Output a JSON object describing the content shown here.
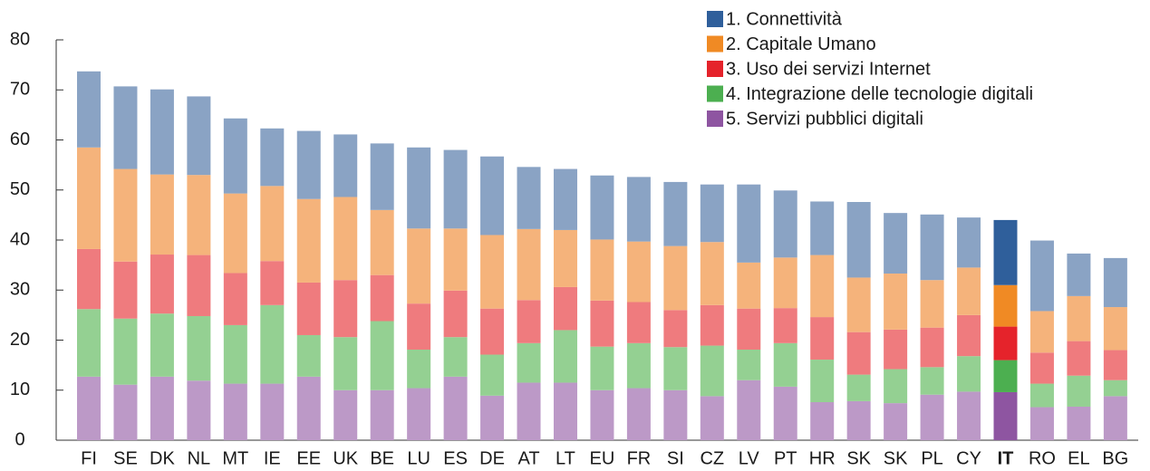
{
  "chart_data": {
    "type": "stacked_bar",
    "categories": [
      "FI",
      "SE",
      "DK",
      "NL",
      "MT",
      "IE",
      "EE",
      "UK",
      "BE",
      "LU",
      "ES",
      "DE",
      "AT",
      "LT",
      "EU",
      "FR",
      "SI",
      "CZ",
      "LV",
      "PT",
      "HR",
      "SK",
      "SK",
      "PL",
      "CY",
      "IT",
      "RO",
      "EL",
      "BG"
    ],
    "highlight": "IT",
    "series": [
      {
        "name": "1. Connettività",
        "color": "#2f5f9b",
        "light_color": "#8aa3c4",
        "values": [
          15.2,
          16.5,
          17.0,
          15.7,
          15.0,
          11.5,
          13.6,
          12.5,
          13.3,
          16.2,
          15.7,
          15.7,
          12.4,
          12.2,
          12.8,
          12.9,
          12.8,
          11.5,
          15.6,
          13.4,
          10.7,
          15.1,
          12.1,
          13.1,
          10.0,
          13.0,
          14.1,
          8.5,
          9.8
        ]
      },
      {
        "name": "2. Capitale Umano",
        "color": "#f08a24",
        "light_color": "#f5b37b",
        "values": [
          20.3,
          18.5,
          16.0,
          16.0,
          15.9,
          15.0,
          16.7,
          16.6,
          13.0,
          15.0,
          12.4,
          14.7,
          14.2,
          11.4,
          12.2,
          12.1,
          12.8,
          12.6,
          9.2,
          10.1,
          12.4,
          10.9,
          11.2,
          9.5,
          9.5,
          8.3,
          8.3,
          9.0,
          8.6
        ]
      },
      {
        "name": "3. Uso dei servizi Internet",
        "color": "#e5232b",
        "light_color": "#ef7b7e",
        "values": [
          12.0,
          11.4,
          11.8,
          12.2,
          10.4,
          8.8,
          10.5,
          11.4,
          9.2,
          9.2,
          9.3,
          9.2,
          8.6,
          8.6,
          9.2,
          8.2,
          7.4,
          8.1,
          8.2,
          7.0,
          8.5,
          8.5,
          7.9,
          7.9,
          8.2,
          6.7,
          6.2,
          6.9,
          6.0
        ]
      },
      {
        "name": "4. Integrazione delle tecnologie digitali",
        "color": "#4caf50",
        "light_color": "#94d092",
        "values": [
          13.5,
          13.2,
          12.6,
          12.9,
          11.7,
          15.7,
          8.3,
          10.6,
          13.8,
          7.7,
          7.9,
          8.2,
          7.9,
          10.5,
          8.7,
          9.0,
          8.6,
          10.1,
          6.1,
          8.7,
          8.5,
          5.3,
          6.8,
          5.5,
          7.1,
          6.4,
          4.7,
          6.2,
          3.2
        ]
      },
      {
        "name": "5. Servizi pubblici digitali",
        "color": "#8e55a1",
        "light_color": "#bc99c7",
        "values": [
          12.7,
          11.1,
          12.7,
          11.9,
          11.3,
          11.3,
          12.7,
          10.0,
          10.0,
          10.4,
          12.7,
          8.9,
          11.5,
          11.5,
          10.0,
          10.4,
          10.0,
          8.8,
          12.0,
          10.7,
          7.6,
          7.8,
          7.4,
          9.1,
          9.7,
          9.6,
          6.6,
          6.7,
          8.8
        ]
      }
    ],
    "ylim": [
      0,
      80
    ],
    "yticks": [
      0,
      10,
      20,
      30,
      40,
      50,
      60,
      70,
      80
    ],
    "legend": "top-right"
  }
}
